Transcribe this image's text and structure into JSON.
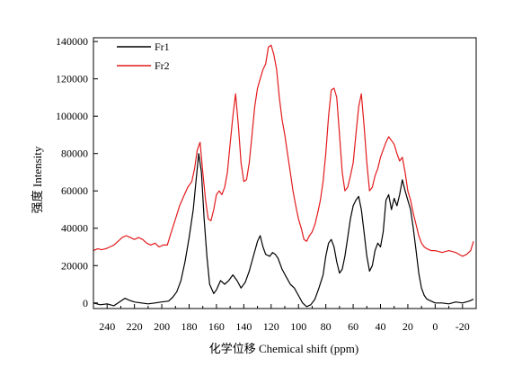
{
  "chart_data": {
    "type": "line",
    "title": "",
    "xlabel": "化学位移 Chemical shift (ppm)",
    "ylabel": "强度 Intensity",
    "xlim": [
      250,
      -30
    ],
    "ylim": [
      -3000,
      142000
    ],
    "x_reversed": true,
    "grid": false,
    "legend_position": "top-left",
    "x_ticks": [
      240,
      220,
      200,
      180,
      160,
      140,
      120,
      100,
      80,
      60,
      40,
      20,
      0,
      -20
    ],
    "y_ticks": [
      0,
      20000,
      40000,
      60000,
      80000,
      100000,
      120000,
      140000
    ],
    "series": [
      {
        "name": "Fr1",
        "color": "#000000",
        "points": [
          [
            250,
            0
          ],
          [
            245,
            -1000
          ],
          [
            240,
            -500
          ],
          [
            235,
            -1500
          ],
          [
            230,
            1000
          ],
          [
            227,
            2500
          ],
          [
            224,
            1500
          ],
          [
            220,
            500
          ],
          [
            215,
            0
          ],
          [
            210,
            -500
          ],
          [
            205,
            0
          ],
          [
            200,
            500
          ],
          [
            195,
            1000
          ],
          [
            192,
            3000
          ],
          [
            189,
            6000
          ],
          [
            186,
            12000
          ],
          [
            183,
            22000
          ],
          [
            180,
            35000
          ],
          [
            177,
            50000
          ],
          [
            175,
            65000
          ],
          [
            173,
            80000
          ],
          [
            171,
            70000
          ],
          [
            169,
            45000
          ],
          [
            167,
            25000
          ],
          [
            165,
            10000
          ],
          [
            162,
            5000
          ],
          [
            160,
            7000
          ],
          [
            157,
            12000
          ],
          [
            154,
            10000
          ],
          [
            151,
            12000
          ],
          [
            148,
            15000
          ],
          [
            145,
            12000
          ],
          [
            142,
            8000
          ],
          [
            139,
            11000
          ],
          [
            136,
            17000
          ],
          [
            133,
            25000
          ],
          [
            130,
            33000
          ],
          [
            128,
            36000
          ],
          [
            126,
            30000
          ],
          [
            124,
            26000
          ],
          [
            121,
            25000
          ],
          [
            119,
            27000
          ],
          [
            117,
            26000
          ],
          [
            115,
            24000
          ],
          [
            112,
            18000
          ],
          [
            109,
            14000
          ],
          [
            106,
            10000
          ],
          [
            103,
            8000
          ],
          [
            100,
            4000
          ],
          [
            97,
            0
          ],
          [
            94,
            -2000
          ],
          [
            91,
            -1000
          ],
          [
            88,
            2000
          ],
          [
            85,
            8000
          ],
          [
            82,
            15000
          ],
          [
            80,
            25000
          ],
          [
            78,
            32000
          ],
          [
            76,
            34000
          ],
          [
            74,
            30000
          ],
          [
            72,
            22000
          ],
          [
            70,
            16000
          ],
          [
            68,
            18000
          ],
          [
            66,
            25000
          ],
          [
            64,
            35000
          ],
          [
            62,
            45000
          ],
          [
            60,
            52000
          ],
          [
            58,
            55000
          ],
          [
            56,
            57000
          ],
          [
            54,
            50000
          ],
          [
            52,
            38000
          ],
          [
            50,
            25000
          ],
          [
            48,
            17000
          ],
          [
            46,
            20000
          ],
          [
            44,
            28000
          ],
          [
            42,
            32000
          ],
          [
            40,
            30000
          ],
          [
            38,
            38000
          ],
          [
            36,
            55000
          ],
          [
            34,
            58000
          ],
          [
            32,
            50000
          ],
          [
            30,
            56000
          ],
          [
            28,
            52000
          ],
          [
            26,
            58000
          ],
          [
            24,
            66000
          ],
          [
            22,
            60000
          ],
          [
            20,
            55000
          ],
          [
            18,
            50000
          ],
          [
            16,
            40000
          ],
          [
            14,
            28000
          ],
          [
            12,
            16000
          ],
          [
            10,
            8000
          ],
          [
            8,
            4000
          ],
          [
            6,
            2000
          ],
          [
            3,
            1000
          ],
          [
            0,
            0
          ],
          [
            -5,
            0
          ],
          [
            -10,
            -500
          ],
          [
            -15,
            500
          ],
          [
            -20,
            0
          ],
          [
            -25,
            1000
          ],
          [
            -28,
            2000
          ]
        ]
      },
      {
        "name": "Fr2",
        "color": "#e31a1c",
        "points": [
          [
            250,
            28000
          ],
          [
            247,
            29000
          ],
          [
            244,
            28500
          ],
          [
            241,
            29000
          ],
          [
            238,
            30000
          ],
          [
            235,
            31000
          ],
          [
            232,
            33000
          ],
          [
            229,
            35000
          ],
          [
            226,
            36000
          ],
          [
            223,
            35000
          ],
          [
            220,
            34000
          ],
          [
            217,
            35000
          ],
          [
            214,
            34000
          ],
          [
            211,
            32000
          ],
          [
            208,
            31000
          ],
          [
            205,
            32000
          ],
          [
            202,
            30000
          ],
          [
            199,
            31000
          ],
          [
            196,
            31000
          ],
          [
            193,
            38000
          ],
          [
            190,
            45000
          ],
          [
            187,
            52000
          ],
          [
            184,
            57000
          ],
          [
            181,
            62000
          ],
          [
            178,
            65000
          ],
          [
            176,
            72000
          ],
          [
            174,
            82000
          ],
          [
            172,
            86000
          ],
          [
            170,
            70000
          ],
          [
            168,
            55000
          ],
          [
            166,
            45000
          ],
          [
            164,
            44000
          ],
          [
            162,
            50000
          ],
          [
            160,
            58000
          ],
          [
            158,
            60000
          ],
          [
            156,
            58000
          ],
          [
            154,
            62000
          ],
          [
            152,
            70000
          ],
          [
            150,
            85000
          ],
          [
            148,
            100000
          ],
          [
            146,
            112000
          ],
          [
            144,
            95000
          ],
          [
            142,
            75000
          ],
          [
            140,
            65000
          ],
          [
            138,
            66000
          ],
          [
            136,
            75000
          ],
          [
            134,
            90000
          ],
          [
            132,
            105000
          ],
          [
            130,
            115000
          ],
          [
            128,
            120000
          ],
          [
            126,
            125000
          ],
          [
            124,
            128000
          ],
          [
            122,
            137000
          ],
          [
            120,
            138000
          ],
          [
            118,
            133000
          ],
          [
            116,
            125000
          ],
          [
            114,
            110000
          ],
          [
            112,
            98000
          ],
          [
            110,
            90000
          ],
          [
            108,
            80000
          ],
          [
            106,
            70000
          ],
          [
            104,
            60000
          ],
          [
            102,
            52000
          ],
          [
            100,
            45000
          ],
          [
            98,
            40000
          ],
          [
            96,
            34000
          ],
          [
            94,
            33000
          ],
          [
            92,
            36000
          ],
          [
            90,
            38000
          ],
          [
            88,
            42000
          ],
          [
            86,
            48000
          ],
          [
            84,
            55000
          ],
          [
            82,
            65000
          ],
          [
            80,
            80000
          ],
          [
            78,
            100000
          ],
          [
            76,
            114000
          ],
          [
            74,
            115000
          ],
          [
            72,
            110000
          ],
          [
            70,
            90000
          ],
          [
            68,
            70000
          ],
          [
            66,
            60000
          ],
          [
            64,
            62000
          ],
          [
            62,
            68000
          ],
          [
            60,
            75000
          ],
          [
            58,
            90000
          ],
          [
            56,
            105000
          ],
          [
            54,
            112000
          ],
          [
            52,
            95000
          ],
          [
            50,
            75000
          ],
          [
            48,
            60000
          ],
          [
            46,
            62000
          ],
          [
            44,
            68000
          ],
          [
            42,
            72000
          ],
          [
            40,
            78000
          ],
          [
            38,
            82000
          ],
          [
            36,
            86000
          ],
          [
            34,
            89000
          ],
          [
            32,
            87000
          ],
          [
            30,
            85000
          ],
          [
            28,
            80000
          ],
          [
            26,
            76000
          ],
          [
            24,
            78000
          ],
          [
            22,
            70000
          ],
          [
            20,
            60000
          ],
          [
            18,
            55000
          ],
          [
            16,
            48000
          ],
          [
            14,
            42000
          ],
          [
            12,
            36000
          ],
          [
            10,
            32000
          ],
          [
            8,
            30000
          ],
          [
            6,
            29000
          ],
          [
            3,
            28000
          ],
          [
            0,
            28000
          ],
          [
            -5,
            27000
          ],
          [
            -10,
            28000
          ],
          [
            -15,
            27000
          ],
          [
            -20,
            25000
          ],
          [
            -23,
            26000
          ],
          [
            -26,
            28000
          ],
          [
            -28,
            33000
          ]
        ]
      }
    ]
  }
}
